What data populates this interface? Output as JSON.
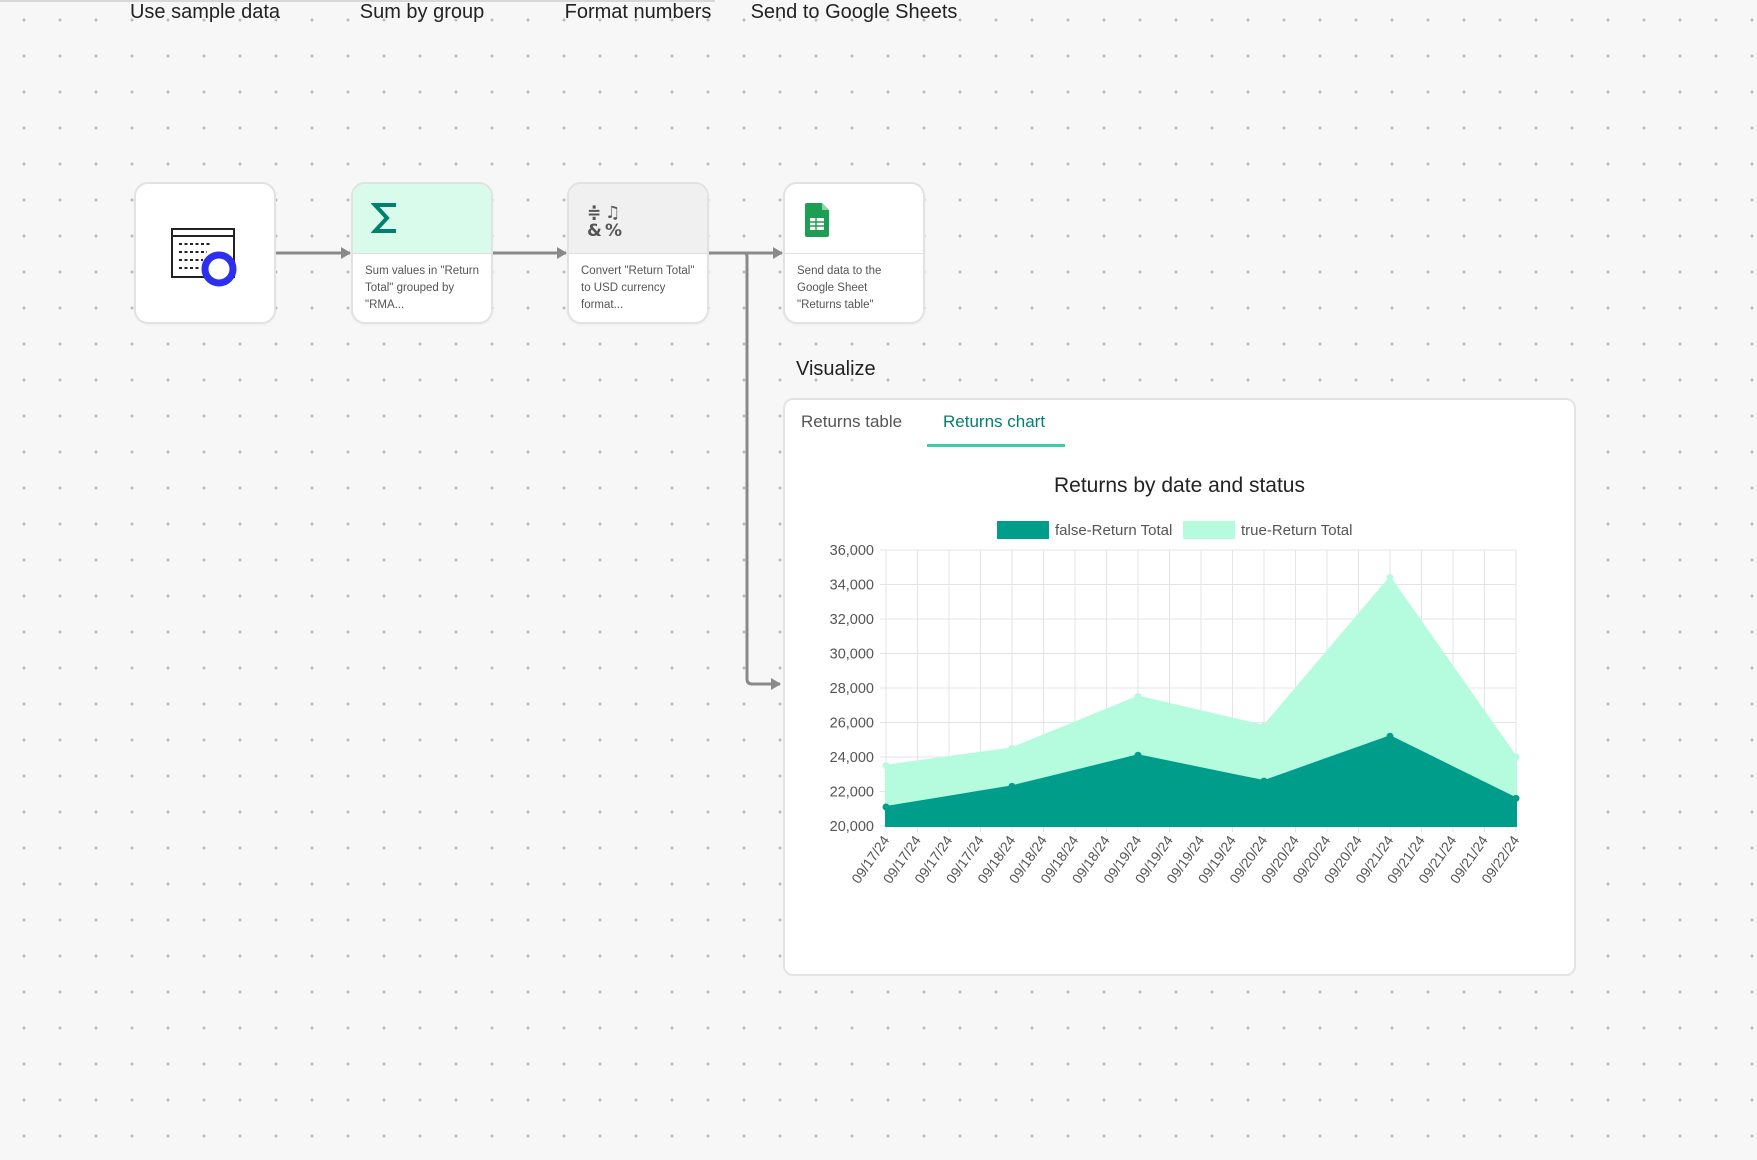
{
  "nodes": [
    {
      "title": "Use sample data",
      "icon": "sample-data-icon",
      "desc": ""
    },
    {
      "title": "Sum by group",
      "icon": "sigma-icon",
      "desc": "Sum values in \"Return Total\" grouped by \"RMA..."
    },
    {
      "title": "Format numbers",
      "icon": "format-symbols-icon",
      "desc": "Convert \"Return Total\" to USD currency format..."
    },
    {
      "title": "Send to Google Sheets",
      "icon": "google-sheets-icon",
      "desc": "Send data to the Google Sheet \"Returns table\""
    }
  ],
  "visualize": {
    "title": "Visualize",
    "tabs": [
      {
        "label": "Returns table",
        "active": false
      },
      {
        "label": "Returns chart",
        "active": true
      }
    ]
  },
  "colors": {
    "accent": "#00806f",
    "false_series": "#009e8a",
    "true_series": "#b5fbdd",
    "tab_underline": "#3ccfa3",
    "source_ring": "#2c2ef0",
    "sheets_green": "#1e9e53"
  },
  "chart_data": {
    "type": "area",
    "title": "Returns by date and status",
    "categories": [
      "09/17/24",
      "09/17/24",
      "09/17/24",
      "09/17/24",
      "09/18/24",
      "09/18/24",
      "09/18/24",
      "09/18/24",
      "09/19/24",
      "09/19/24",
      "09/19/24",
      "09/19/24",
      "09/20/24",
      "09/20/24",
      "09/20/24",
      "09/20/24",
      "09/21/24",
      "09/21/24",
      "09/21/24",
      "09/21/24",
      "09/22/24"
    ],
    "series": [
      {
        "name": "false-Return Total",
        "stacked": false,
        "values": [
          21100,
          21400,
          21700,
          22000,
          22300,
          22750,
          23200,
          23650,
          24100,
          23725,
          23350,
          22975,
          22600,
          23250,
          23900,
          24550,
          25200,
          24300,
          23400,
          22500,
          21600
        ]
      },
      {
        "name": "true-Return Total",
        "stacked": false,
        "values": [
          23500,
          23750,
          24000,
          24250,
          24500,
          25250,
          26000,
          26750,
          27500,
          27075,
          26650,
          26225,
          25800,
          27950,
          30100,
          32250,
          34400,
          31800,
          29200,
          26600,
          24000
        ]
      }
    ],
    "ylim": [
      20000,
      36000
    ],
    "yticks": [
      20000,
      22000,
      24000,
      26000,
      28000,
      30000,
      32000,
      34000,
      36000
    ],
    "ytick_labels": [
      "20,000",
      "22,000",
      "24,000",
      "26,000",
      "28,000",
      "30,000",
      "32,000",
      "34,000",
      "36,000"
    ],
    "marker_indices": [
      0,
      4,
      8,
      12,
      16,
      20
    ],
    "grid": true,
    "legend": "top"
  }
}
